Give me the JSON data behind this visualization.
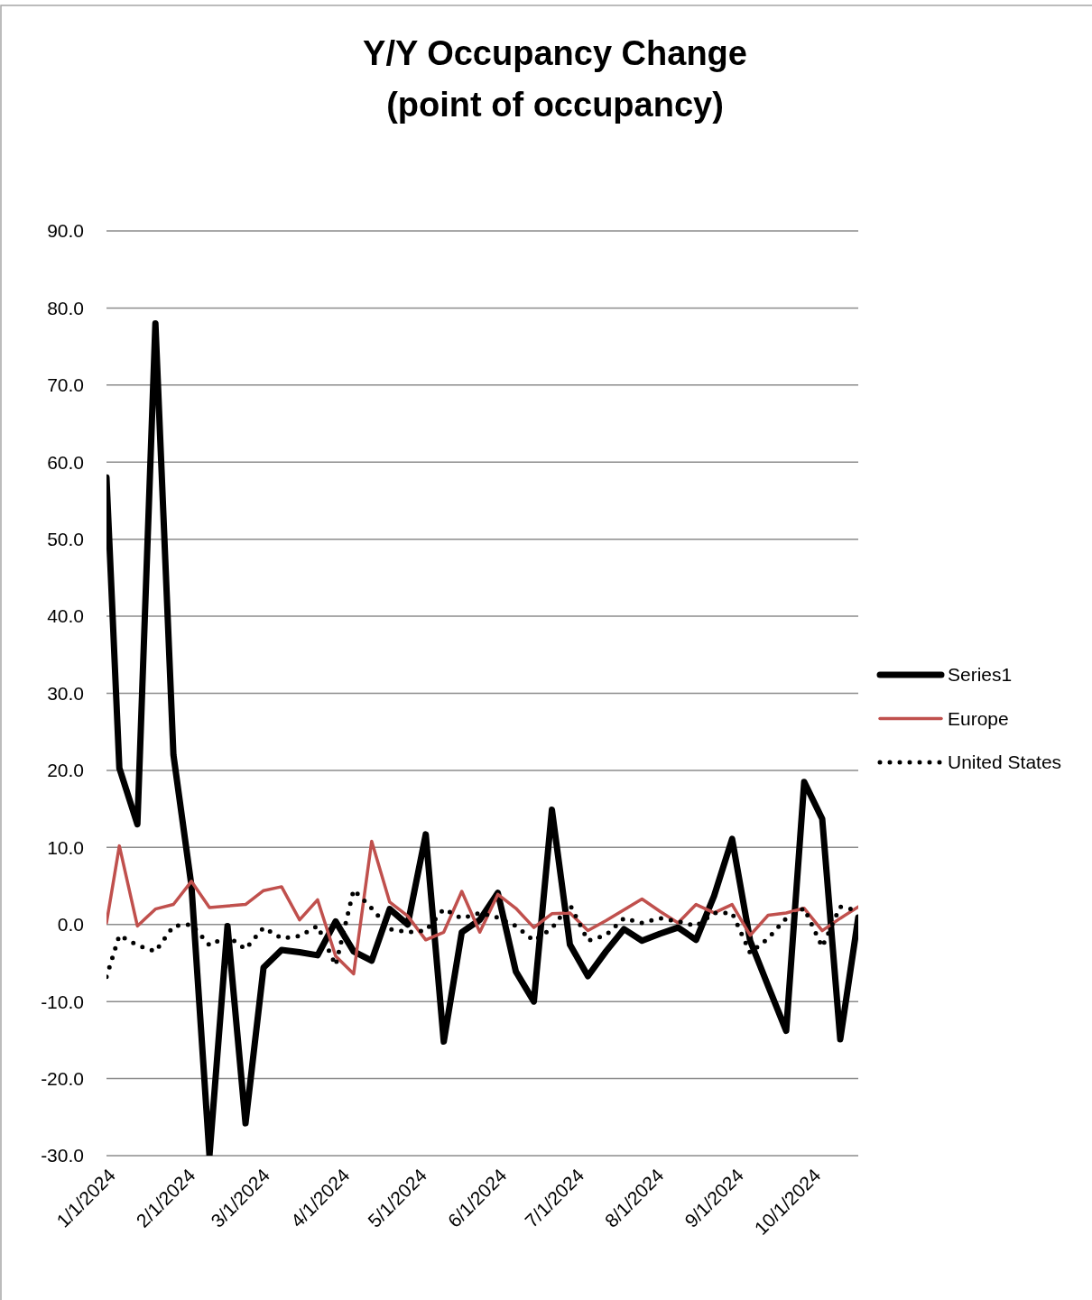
{
  "chart_data": {
    "type": "line",
    "title": "Y/Y Occupancy Change\n(point of occupancy)",
    "x": [
      "2024-01-01",
      "2024-01-06",
      "2024-01-13",
      "2024-01-20",
      "2024-01-27",
      "2024-02-03",
      "2024-02-10",
      "2024-02-17",
      "2024-02-24",
      "2024-03-02",
      "2024-03-09",
      "2024-03-16",
      "2024-03-23",
      "2024-03-30",
      "2024-04-06",
      "2024-04-13",
      "2024-04-20",
      "2024-04-27",
      "2024-05-04",
      "2024-05-11",
      "2024-05-18",
      "2024-05-25",
      "2024-06-01",
      "2024-06-08",
      "2024-06-15",
      "2024-06-22",
      "2024-06-29",
      "2024-07-06",
      "2024-07-13",
      "2024-07-20",
      "2024-07-27",
      "2024-08-03",
      "2024-08-10",
      "2024-08-17",
      "2024-08-24",
      "2024-08-31",
      "2024-09-07",
      "2024-09-14",
      "2024-09-21",
      "2024-09-28",
      "2024-10-05",
      "2024-10-12",
      "2024-10-19"
    ],
    "series": [
      {
        "name": "Series1",
        "color": "#000000",
        "line_style": "solid",
        "values": [
          58,
          20.3,
          13,
          78,
          22,
          5,
          -30,
          -0.2,
          -25.8,
          -5.6,
          -3.3,
          -3.6,
          -4.0,
          0.4,
          -3.5,
          -4.7,
          2.0,
          0,
          11.7,
          -15.2,
          -1.0,
          0.6,
          4.1,
          -6.1,
          -10.0,
          14.9,
          -2.6,
          -6.7,
          -3.5,
          -0.6,
          -2.1,
          -1.2,
          -0.4,
          -2.0,
          3.7,
          11.1,
          -2.1,
          -8.0,
          -13.8,
          18.5,
          13.7,
          -14.9,
          0.9
        ]
      },
      {
        "name": "Europe",
        "color": "#c0504d",
        "line_style": "solid",
        "values": [
          0.2,
          10.2,
          -0.2,
          2.0,
          2.6,
          5.6,
          2.2,
          2.4,
          2.6,
          4.4,
          4.9,
          0.6,
          3.2,
          -4.1,
          -6.4,
          10.8,
          2.9,
          1.1,
          -2.0,
          -1.0,
          4.3,
          -1.0,
          3.9,
          2.1,
          -0.4,
          1.4,
          1.5,
          -0.8,
          0.5,
          1.9,
          3.3,
          1.7,
          0.2,
          2.6,
          1.5,
          2.6,
          -1.4,
          1.2,
          1.5,
          2.1,
          -0.8,
          0.8,
          2.3
        ]
      },
      {
        "name": "United States",
        "color": "#000000",
        "line_style": "dotted",
        "values": [
          -6.8,
          -1.4,
          -2.7,
          -3.5,
          -0.2,
          0,
          -2.7,
          -1.5,
          -3.2,
          -0.4,
          -1.8,
          -1.5,
          -0.2,
          -5.3,
          4.5,
          2.1,
          -0.6,
          -1.0,
          -0.8,
          2.0,
          0.8,
          1.5,
          0.9,
          -0.2,
          -2.1,
          -0.5,
          2.6,
          -2.1,
          -1.4,
          0.8,
          0.2,
          0.8,
          0.4,
          -0.2,
          1.5,
          1.5,
          -3.7,
          -1.8,
          0.8,
          2.1,
          -2.9,
          2.3,
          1.8
        ]
      }
    ],
    "xlim": [
      "2024-01-01",
      "2024-10-19"
    ],
    "xticks": [
      {
        "value": "2024-01-01",
        "label": "1/1/2024"
      },
      {
        "value": "2024-02-01",
        "label": "2/1/2024"
      },
      {
        "value": "2024-03-01",
        "label": "3/1/2024"
      },
      {
        "value": "2024-04-01",
        "label": "4/1/2024"
      },
      {
        "value": "2024-05-01",
        "label": "5/1/2024"
      },
      {
        "value": "2024-06-01",
        "label": "6/1/2024"
      },
      {
        "value": "2024-07-01",
        "label": "7/1/2024"
      },
      {
        "value": "2024-08-01",
        "label": "8/1/2024"
      },
      {
        "value": "2024-09-01",
        "label": "9/1/2024"
      },
      {
        "value": "2024-10-01",
        "label": "10/1/2024"
      }
    ],
    "ylim": [
      -30,
      90
    ],
    "yticks": [
      {
        "value": -30,
        "label": "-30.0"
      },
      {
        "value": -20,
        "label": "-20.0"
      },
      {
        "value": -10,
        "label": "-10.0"
      },
      {
        "value": 0,
        "label": "0.0"
      },
      {
        "value": 10,
        "label": "10.0"
      },
      {
        "value": 20,
        "label": "20.0"
      },
      {
        "value": 30,
        "label": "30.0"
      },
      {
        "value": 40,
        "label": "40.0"
      },
      {
        "value": 50,
        "label": "50.0"
      },
      {
        "value": 60,
        "label": "60.0"
      },
      {
        "value": 70,
        "label": "70.0"
      },
      {
        "value": 80,
        "label": "80.0"
      },
      {
        "value": 90,
        "label": "90.0"
      }
    ],
    "grid": "y",
    "legend": "right",
    "marker": "none"
  }
}
